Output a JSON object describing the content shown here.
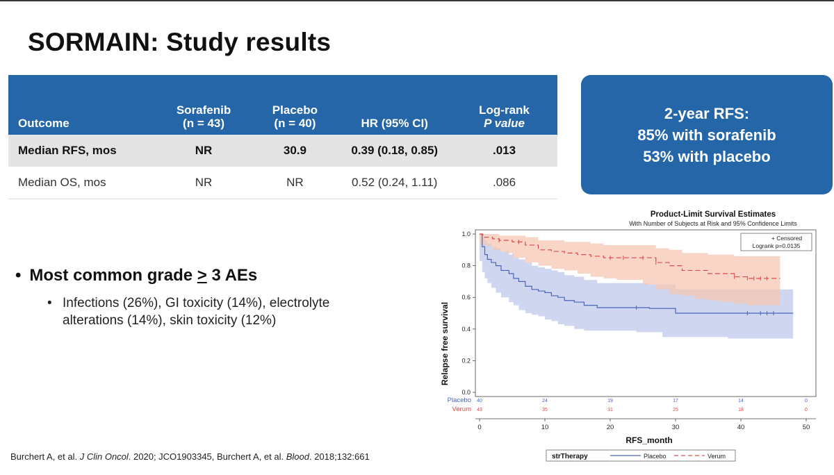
{
  "title": "SORMAIN: Study results",
  "table": {
    "headers": [
      {
        "line1": "Outcome",
        "line2": ""
      },
      {
        "line1": "Sorafenib",
        "line2": "(n = 43)"
      },
      {
        "line1": "Placebo",
        "line2": "(n = 40)"
      },
      {
        "line1": "HR (95% CI)",
        "line2": ""
      },
      {
        "line1": "Log-rank",
        "line2": "P value"
      }
    ],
    "rows": [
      [
        "Median RFS, mos",
        "NR",
        "30.9",
        "0.39 (0.18, 0.85)",
        ".013"
      ],
      [
        "Median OS, mos",
        "NR",
        "NR",
        "0.52 (0.24, 1.11)",
        ".086"
      ]
    ]
  },
  "callout": {
    "line1": "2-year RFS:",
    "line2": "85% with sorafenib",
    "line3": "53% with placebo"
  },
  "bullets": {
    "main_prefix": "Most common grade ",
    "main_symbol": ">",
    "main_suffix": " 3 AEs",
    "sub": "Infections (26%), GI toxicity (14%), electrolyte alterations (14%), skin toxicity (12%)"
  },
  "citation": {
    "part1": "Burchert A, et al. ",
    "journal1": "J Clin Oncol",
    "part2": ". 2020; JCO1903345, Burchert A, et al. ",
    "journal2": "Blood",
    "part3": ". 2018;132:661"
  },
  "chart_data": {
    "type": "line",
    "title": "Product-Limit Survival Estimates",
    "subtitle": "With Number of Subjects at Risk and 95% Confidence Limits",
    "xlabel": "RFS_month",
    "ylabel": "Relapse free survival",
    "xlim": [
      0,
      50
    ],
    "ylim": [
      0,
      1
    ],
    "xticks": [
      0,
      10,
      20,
      30,
      40,
      50
    ],
    "yticks": [
      0.0,
      0.2,
      0.4,
      0.6,
      0.8,
      1.0
    ],
    "legend_box": {
      "line1": "+ Censored",
      "line2": "Logrank p=0.0135"
    },
    "bottom_legend": {
      "title": "strTherapy",
      "entries": [
        "Placebo",
        "Verum"
      ]
    },
    "colors": {
      "placebo": "#4a64b8",
      "verum": "#d94b4b",
      "placebo_band": "#c5d0ec",
      "verum_band": "#f6c7b4"
    },
    "series": [
      {
        "name": "Placebo",
        "x": [
          0,
          0.4,
          0.8,
          1.2,
          1.8,
          2.5,
          3.3,
          4.5,
          5.2,
          6,
          7,
          8,
          9,
          10,
          11,
          12,
          13,
          14.5,
          16,
          18,
          20,
          22,
          24,
          26,
          28,
          30,
          32,
          34,
          36,
          38,
          40,
          42,
          44,
          46,
          48
        ],
        "y": [
          1.0,
          0.92,
          0.87,
          0.84,
          0.82,
          0.8,
          0.77,
          0.75,
          0.72,
          0.7,
          0.67,
          0.65,
          0.64,
          0.63,
          0.61,
          0.6,
          0.58,
          0.57,
          0.55,
          0.535,
          0.535,
          0.535,
          0.535,
          0.53,
          0.53,
          0.5,
          0.5,
          0.5,
          0.5,
          0.5,
          0.5,
          0.5,
          0.5,
          0.5,
          0.5
        ],
        "lower": [
          1.0,
          0.83,
          0.76,
          0.72,
          0.69,
          0.66,
          0.63,
          0.6,
          0.57,
          0.55,
          0.52,
          0.5,
          0.49,
          0.48,
          0.46,
          0.45,
          0.43,
          0.42,
          0.4,
          0.39,
          0.39,
          0.39,
          0.39,
          0.38,
          0.38,
          0.35,
          0.35,
          0.35,
          0.35,
          0.35,
          0.34,
          0.34,
          0.34,
          0.34,
          0.34
        ],
        "upper": [
          1.0,
          0.98,
          0.96,
          0.94,
          0.92,
          0.91,
          0.89,
          0.87,
          0.85,
          0.84,
          0.82,
          0.8,
          0.79,
          0.78,
          0.77,
          0.76,
          0.74,
          0.73,
          0.71,
          0.69,
          0.69,
          0.69,
          0.69,
          0.68,
          0.68,
          0.65,
          0.65,
          0.65,
          0.65,
          0.65,
          0.65,
          0.65,
          0.65,
          0.65,
          0.65
        ],
        "censored_x": [
          24,
          41,
          43,
          44,
          45
        ],
        "at_risk": [
          40,
          24,
          19,
          17,
          14,
          0
        ]
      },
      {
        "name": "Verum",
        "x": [
          0,
          0.5,
          1.2,
          2,
          3,
          4,
          5,
          7,
          9,
          11,
          13,
          15,
          17,
          19,
          21,
          23,
          25,
          27,
          29,
          31,
          33,
          35,
          37,
          39,
          41,
          43,
          45,
          46
        ],
        "y": [
          1.0,
          0.98,
          0.98,
          0.97,
          0.96,
          0.96,
          0.95,
          0.93,
          0.9,
          0.89,
          0.88,
          0.87,
          0.86,
          0.85,
          0.85,
          0.85,
          0.85,
          0.82,
          0.8,
          0.77,
          0.77,
          0.75,
          0.75,
          0.73,
          0.72,
          0.72,
          0.72,
          0.72
        ],
        "lower": [
          1.0,
          0.94,
          0.93,
          0.92,
          0.9,
          0.89,
          0.88,
          0.85,
          0.82,
          0.8,
          0.78,
          0.77,
          0.75,
          0.73,
          0.72,
          0.71,
          0.71,
          0.68,
          0.65,
          0.62,
          0.61,
          0.59,
          0.58,
          0.57,
          0.56,
          0.55,
          0.55,
          0.55
        ],
        "upper": [
          1.0,
          1.0,
          1.0,
          1.0,
          0.99,
          0.99,
          0.99,
          0.98,
          0.96,
          0.96,
          0.95,
          0.95,
          0.94,
          0.93,
          0.93,
          0.93,
          0.93,
          0.91,
          0.9,
          0.88,
          0.88,
          0.87,
          0.87,
          0.86,
          0.86,
          0.86,
          0.86,
          0.86
        ],
        "censored_x": [
          3,
          6,
          20,
          22,
          25,
          27,
          39,
          41,
          42,
          43,
          44
        ],
        "at_risk": [
          43,
          35,
          31,
          25,
          18,
          0
        ]
      }
    ]
  }
}
